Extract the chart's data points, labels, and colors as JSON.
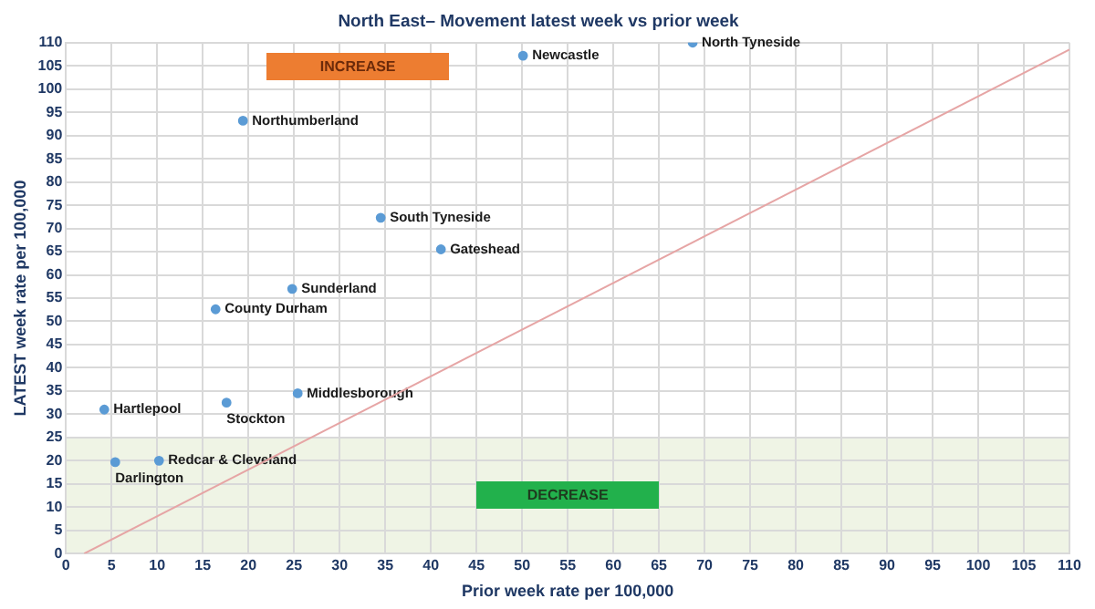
{
  "chart_data": {
    "type": "scatter",
    "title": "North East– Movement latest week vs prior week",
    "xlabel": "Prior week rate per 100,000",
    "ylabel": "LATEST week rate per 100,000",
    "xlim": [
      0,
      110
    ],
    "xticks": [
      0,
      5,
      10,
      15,
      20,
      25,
      30,
      35,
      40,
      45,
      50,
      55,
      60,
      65,
      70,
      75,
      80,
      85,
      90,
      95,
      100,
      105,
      110
    ],
    "ylim": [
      0,
      110
    ],
    "yticks": [
      0,
      5,
      10,
      15,
      20,
      25,
      30,
      35,
      40,
      45,
      50,
      55,
      60,
      65,
      70,
      75,
      80,
      85,
      90,
      95,
      100,
      105,
      110
    ],
    "grid": true,
    "legend": false,
    "series": [
      {
        "type": "scatter",
        "marker": "circle",
        "color": "#5b9bd5",
        "x": [
          68.7,
          50.1,
          19.4,
          34.5,
          41.1,
          24.8,
          16.4,
          4.2,
          17.6,
          25.4,
          5.4,
          10.2
        ],
        "values": [
          110,
          107.2,
          93.2,
          72.3,
          65.5,
          57,
          52.6,
          31,
          32.5,
          34.5,
          19.7,
          20
        ]
      },
      {
        "type": "line",
        "marker": "none",
        "color": "#e6a5a5",
        "x": [
          2,
          110
        ],
        "values": [
          0,
          108.5
        ]
      }
    ],
    "bands": [
      {
        "axis": "y",
        "from": 0,
        "to": 25,
        "label": "DECREASE",
        "color": "#ebf1de"
      }
    ],
    "annotations": [
      "INCREASE",
      {
        "text": "North Tyneside",
        "x": 68.7,
        "y": 110
      },
      {
        "text": "Newcastle",
        "x": 50.1,
        "y": 107.2
      },
      {
        "text": "Northumberland",
        "x": 19.4,
        "y": 93.2
      },
      {
        "text": "South Tyneside",
        "x": 34.5,
        "y": 72.3
      },
      {
        "text": "Gateshead",
        "x": 41.1,
        "y": 65.5
      },
      {
        "text": "Sunderland",
        "x": 24.8,
        "y": 57
      },
      {
        "text": "County Durham",
        "x": 16.4,
        "y": 52.6
      },
      {
        "text": "Hartlepool",
        "x": 4.2,
        "y": 31
      },
      {
        "text": "Stockton",
        "x": 17.6,
        "y": 32.5
      },
      {
        "text": "Middlesborough",
        "x": 25.4,
        "y": 34.5
      },
      {
        "text": "Darlington",
        "x": 5.4,
        "y": 19.7
      },
      {
        "text": "Redcar & Cleveland",
        "x": 10.2,
        "y": 20
      }
    ]
  }
}
